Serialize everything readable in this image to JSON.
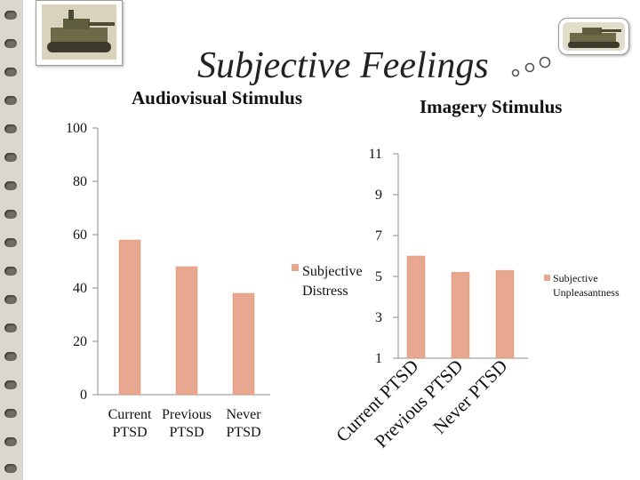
{
  "slide": {
    "title": "Subjective Feelings",
    "colors": {
      "bar": "#e8a88f",
      "bar_edge": "#d58d74",
      "axis": "#8c8c8c",
      "text": "#111111"
    }
  },
  "chart_data": [
    {
      "type": "bar",
      "title": "Audiovisual Stimulus",
      "categories": [
        "Current PTSD",
        "Previous PTSD",
        "Never PTSD"
      ],
      "tick_labels": [
        "Current\nPTSD",
        "Previous\nPTSD",
        "Never\nPTSD"
      ],
      "series": [
        {
          "name": "Subjective Distress",
          "legend_label": "Subjective\nDistress",
          "values": [
            58,
            48,
            38
          ]
        }
      ],
      "ylim": [
        0,
        100
      ],
      "yticks": [
        0,
        20,
        40,
        60,
        80,
        100
      ],
      "grid": false,
      "legend": "right"
    },
    {
      "type": "bar",
      "title": "Imagery Stimulus",
      "categories": [
        "Current PTSD",
        "Previous PTSD",
        "Never PTSD"
      ],
      "tick_labels": [
        "Current PTSD",
        "Previous PTSD",
        "Never PTSD"
      ],
      "series": [
        {
          "name": "Subjective Unpleasantness",
          "legend_label": "Subjective\nUnpleasantness",
          "values": [
            6,
            5.2,
            5.3
          ]
        }
      ],
      "ylim": [
        1,
        11
      ],
      "yticks": [
        1,
        3,
        5,
        7,
        9,
        11
      ],
      "grid": false,
      "legend": "right"
    }
  ]
}
